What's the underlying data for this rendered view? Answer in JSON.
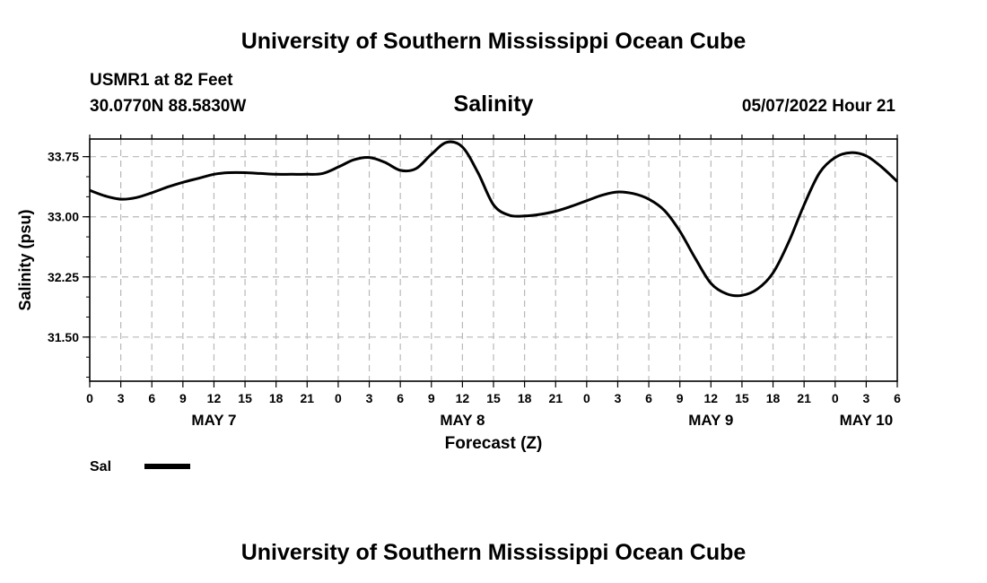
{
  "header": {
    "title": "University of Southern Mississippi Ocean Cube",
    "station_line": "USMR1 at 82 Feet",
    "coords_line": "30.0770N  88.5830W",
    "datetime": "05/07/2022 Hour 21",
    "footer_title": "University of Southern Mississippi Ocean Cube"
  },
  "chart_data": {
    "type": "line",
    "title": "Salinity",
    "xlabel": "Forecast (Z)",
    "ylabel": "Salinity (psu)",
    "x_unit": "hours from 00Z May 7",
    "xlim": [
      0,
      78
    ],
    "ylim": [
      30.95,
      33.97
    ],
    "y_ticks": [
      31.5,
      32.25,
      33.0,
      33.75
    ],
    "y_tick_labels": [
      "31.50",
      "32.25",
      "33.00",
      "33.75"
    ],
    "x_ticks": [
      0,
      3,
      6,
      9,
      12,
      15,
      18,
      21,
      24,
      27,
      30,
      33,
      36,
      39,
      42,
      45,
      48,
      51,
      54,
      57,
      60,
      63,
      66,
      69,
      72,
      75,
      78
    ],
    "x_tick_labels": [
      "0",
      "3",
      "6",
      "9",
      "12",
      "15",
      "18",
      "21",
      "0",
      "3",
      "6",
      "9",
      "12",
      "15",
      "18",
      "21",
      "0",
      "3",
      "6",
      "9",
      "12",
      "15",
      "18",
      "21",
      "0",
      "3",
      "6"
    ],
    "day_labels": [
      {
        "x": 12,
        "label": "MAY 7"
      },
      {
        "x": 36,
        "label": "MAY 8"
      },
      {
        "x": 60,
        "label": "MAY 9"
      },
      {
        "x": 75,
        "label": "MAY 10"
      }
    ],
    "grid": true,
    "legend": {
      "position": "bottom-left",
      "entries": [
        "Sal"
      ]
    },
    "series": [
      {
        "name": "Sal",
        "color": "#000000",
        "x": [
          0,
          1.5,
          3,
          4.5,
          6,
          7.5,
          9,
          10.5,
          12,
          13.5,
          15,
          16.5,
          18,
          19.5,
          21,
          22.5,
          24,
          25.5,
          27,
          28.5,
          30,
          31.5,
          33,
          34.5,
          36,
          37.5,
          39,
          40.5,
          42,
          43.5,
          45,
          46.5,
          48,
          49.5,
          51,
          52.5,
          54,
          55.5,
          57,
          58.5,
          60,
          61.5,
          63,
          64.5,
          66,
          67.5,
          69,
          70.5,
          72,
          73.5,
          75,
          76.5,
          78
        ],
        "values": [
          33.33,
          33.26,
          33.22,
          33.24,
          33.3,
          33.37,
          33.43,
          33.48,
          33.53,
          33.55,
          33.55,
          33.54,
          33.53,
          33.53,
          33.53,
          33.54,
          33.62,
          33.71,
          33.74,
          33.68,
          33.58,
          33.6,
          33.78,
          33.93,
          33.87,
          33.55,
          33.15,
          33.02,
          33.01,
          33.03,
          33.07,
          33.13,
          33.2,
          33.27,
          33.31,
          33.29,
          33.22,
          33.08,
          32.82,
          32.48,
          32.17,
          32.04,
          32.02,
          32.1,
          32.3,
          32.68,
          33.15,
          33.55,
          33.74,
          33.8,
          33.76,
          33.62,
          33.44
        ]
      }
    ]
  }
}
